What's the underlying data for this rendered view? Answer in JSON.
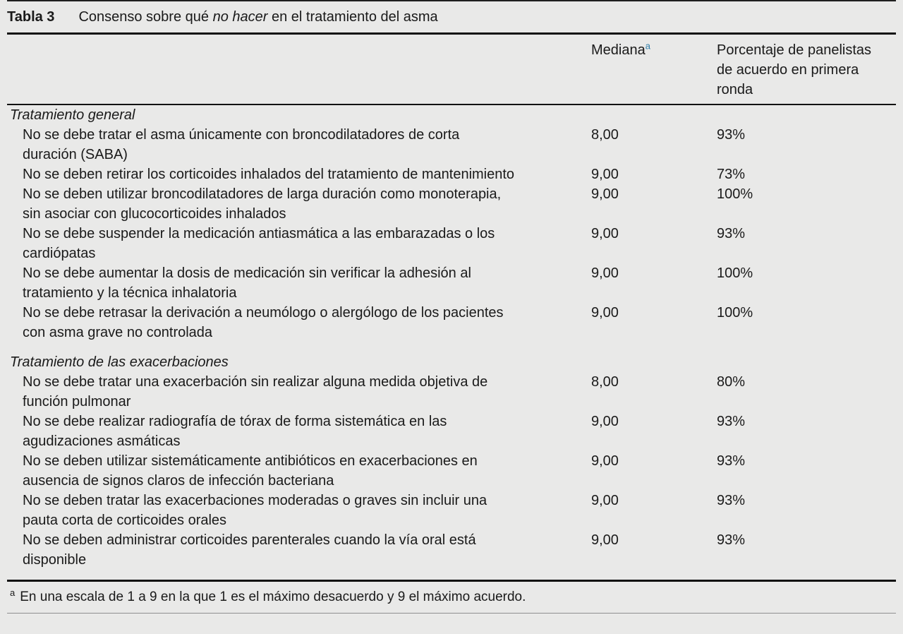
{
  "colors": {
    "page_background": "#e9e9e8",
    "text": "#1a1a1a",
    "rule": "#111111",
    "superscript_accent": "#2f7ea9"
  },
  "table": {
    "label": "Tabla 3",
    "title": {
      "pre": "Consenso sobre qué ",
      "italic": "no hacer",
      "post": " en el tratamiento del asma"
    },
    "columns": {
      "statement_header": "",
      "mediana_label": "Mediana",
      "mediana_superscript": "a",
      "porcentaje_label": "Porcentaje de panelistas de acuerdo en primera ronda"
    },
    "sections": [
      {
        "header": "Tratamiento general",
        "rows": [
          {
            "text": "No se debe tratar el asma únicamente con broncodilatadores de corta duración (SABA)",
            "mediana": "8,00",
            "porcentaje": "93%"
          },
          {
            "text": "No se deben retirar los corticoides inhalados del tratamiento de mantenimiento",
            "mediana": "9,00",
            "porcentaje": "73%"
          },
          {
            "text": "No se deben utilizar broncodilatadores de larga duración como monoterapia, sin asociar con glucocorticoides inhalados",
            "mediana": "9,00",
            "porcentaje": "100%"
          },
          {
            "text": "No se debe suspender la medicación antiasmática a las embarazadas o los cardiópatas",
            "mediana": "9,00",
            "porcentaje": "93%"
          },
          {
            "text": "No se debe aumentar la dosis de medicación sin verificar la adhesión al tratamiento y la técnica inhalatoria",
            "mediana": "9,00",
            "porcentaje": "100%"
          },
          {
            "text": "No se debe retrasar la derivación a neumólogo o alergólogo de los pacientes con asma grave no controlada",
            "mediana": "9,00",
            "porcentaje": "100%"
          }
        ]
      },
      {
        "header": "Tratamiento de las exacerbaciones",
        "rows": [
          {
            "text": "No se debe tratar una exacerbación sin realizar alguna medida objetiva de función pulmonar",
            "mediana": "8,00",
            "porcentaje": "80%"
          },
          {
            "text": "No se debe realizar radiografía de tórax de forma sistemática en las agudizaciones asmáticas",
            "mediana": "9,00",
            "porcentaje": "93%"
          },
          {
            "text": "No se deben utilizar sistemáticamente antibióticos en exacerbaciones en ausencia de signos claros de infección bacteriana",
            "mediana": "9,00",
            "porcentaje": "93%"
          },
          {
            "text": "No se deben tratar las exacerbaciones moderadas o graves sin incluir una pauta corta de corticoides orales",
            "mediana": "9,00",
            "porcentaje": "93%"
          },
          {
            "text": "No se deben administrar corticoides parenterales cuando la vía oral está disponible",
            "mediana": "9,00",
            "porcentaje": "93%"
          }
        ]
      }
    ],
    "footnote": {
      "marker": "a",
      "text": "En una escala de 1 a 9 en la que 1 es el máximo desacuerdo y 9 el máximo acuerdo."
    }
  }
}
